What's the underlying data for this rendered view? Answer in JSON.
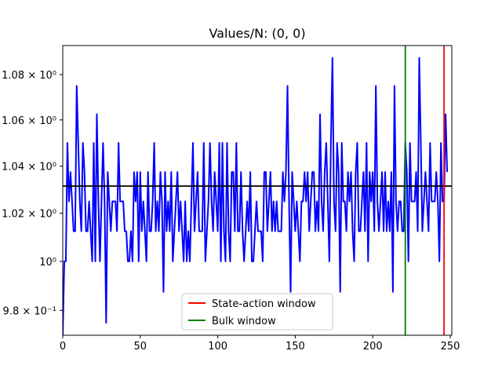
{
  "chart_data": {
    "type": "line",
    "title": "Values/N: (0, 0)",
    "xlabel": "",
    "ylabel": "",
    "xlim": [
      0,
      251
    ],
    "ylim": [
      0.97,
      1.093
    ],
    "yscale": "log",
    "grid": false,
    "x_ticks": [
      0,
      50,
      100,
      150,
      200,
      250
    ],
    "y_ticks": [
      {
        "value": 0.98,
        "label": "9.8 × 10⁻¹"
      },
      {
        "value": 1.0,
        "label": "10⁰"
      },
      {
        "value": 1.02,
        "label": "1.02 × 10⁰"
      },
      {
        "value": 1.04,
        "label": "1.04 × 10⁰"
      },
      {
        "value": 1.06,
        "label": "1.06 × 10⁰"
      },
      {
        "value": 1.08,
        "label": "1.08 × 10⁰"
      }
    ],
    "series": [
      {
        "color": "#0000ff",
        "x_start": 0,
        "values": [
          0.97,
          1.0,
          1.0,
          1.05,
          1.025,
          1.0375,
          1.025,
          1.0125,
          1.0125,
          1.075,
          1.05,
          1.025,
          1.0125,
          1.05,
          1.0375,
          1.0125,
          1.0125,
          1.025,
          1.0125,
          1.0,
          1.05,
          1.0,
          1.0625,
          1.025,
          1.0,
          1.025,
          1.05,
          1.025,
          0.975,
          1.0375,
          1.025,
          1.0125,
          1.025,
          1.025,
          1.025,
          1.0125,
          1.05,
          1.025,
          1.025,
          1.025,
          1.0125,
          1.0125,
          1.0,
          1.0,
          1.0125,
          1.0,
          1.0375,
          1.025,
          1.0375,
          1.0,
          1.0375,
          1.0125,
          1.025,
          1.0125,
          1.0,
          1.0375,
          1.0125,
          1.0125,
          1.025,
          1.05,
          1.0125,
          1.025,
          1.0125,
          1.0375,
          1.025,
          0.9875,
          1.0375,
          1.0125,
          1.025,
          1.0125,
          1.0375,
          1.0,
          1.0125,
          1.025,
          1.0375,
          1.0125,
          1.025,
          1.0125,
          1.0,
          1.025,
          1.0,
          1.0125,
          1.0,
          1.025,
          1.05,
          1.0125,
          1.025,
          1.0375,
          1.0125,
          1.0125,
          1.0125,
          1.05,
          1.0,
          1.0125,
          1.025,
          1.05,
          1.025,
          1.0125,
          1.0375,
          1.025,
          1.0125,
          1.05,
          1.0,
          1.05,
          1.0125,
          1.0,
          1.05,
          1.0125,
          1.0,
          1.0375,
          1.0375,
          1.0125,
          1.05,
          1.0125,
          1.0125,
          1.0375,
          1.0125,
          1.0,
          1.0125,
          1.025,
          1.0125,
          1.0375,
          1.0,
          1.0,
          1.0125,
          1.025,
          1.0125,
          1.0125,
          1.0125,
          1.0,
          1.0375,
          1.0375,
          1.0125,
          1.025,
          1.0375,
          1.0125,
          1.025,
          1.0125,
          1.025,
          1.0125,
          1.0125,
          1.0125,
          1.0375,
          1.025,
          1.0375,
          1.075,
          1.025,
          0.9875,
          1.0375,
          1.025,
          1.0125,
          1.025,
          1.0125,
          1.0,
          1.025,
          1.025,
          1.0375,
          1.025,
          1.0375,
          1.0125,
          1.025,
          1.0375,
          1.0375,
          1.0125,
          1.025,
          1.0125,
          1.0625,
          1.025,
          1.0125,
          1.0375,
          1.05,
          1.025,
          1.0,
          1.05,
          1.0875,
          1.025,
          1.0125,
          1.05,
          1.0375,
          0.9875,
          1.05,
          1.025,
          1.025,
          1.0125,
          1.0375,
          1.025,
          1.0375,
          1.0125,
          1.0,
          1.0375,
          1.05,
          1.0125,
          1.0125,
          1.025,
          1.0375,
          1.0125,
          1.05,
          1.0,
          1.0375,
          1.025,
          1.0375,
          1.0125,
          1.075,
          1.025,
          1.0125,
          1.025,
          1.0375,
          1.0125,
          1.0375,
          1.0125,
          1.025,
          1.0125,
          1.0375,
          0.9875,
          1.075,
          1.025,
          1.0125,
          1.025,
          1.025,
          1.0125,
          1.0125,
          1.05,
          1.0375,
          1.0,
          1.05,
          1.025,
          1.025,
          1.025,
          1.0375,
          1.0125,
          1.0875,
          1.05,
          1.0125,
          1.025,
          1.0375,
          1.025,
          1.0125,
          1.05,
          1.025,
          1.025,
          1.025,
          1.0375,
          1.025,
          1.0,
          1.05,
          1.025,
          1.025,
          1.0625,
          1.0375
        ]
      }
    ],
    "hline": {
      "y": 1.0315,
      "color": "#000000"
    },
    "vlines": [
      {
        "x": 221,
        "color": "#008000",
        "label": "Bulk window"
      },
      {
        "x": 246,
        "color": "#ff0000",
        "label": "State-action window"
      }
    ],
    "legend": {
      "placement": "lower-center",
      "entries": [
        {
          "label": "State-action window",
          "color": "#ff0000"
        },
        {
          "label": "Bulk window",
          "color": "#008000"
        }
      ]
    }
  }
}
